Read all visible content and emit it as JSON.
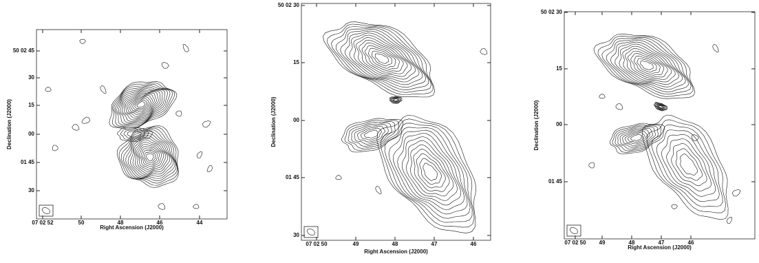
{
  "panels": [
    {
      "x_label": "Right Ascension (J2000)",
      "y_label": "Declination (J2000)",
      "xticks": [
        "07 02 52",
        "50",
        "48",
        "46",
        "44"
      ],
      "yticks": [
        "50 02 45",
        "30",
        "15",
        "00",
        "01 45",
        "30"
      ]
    },
    {
      "x_label": "Right Ascension (J2000)",
      "y_label": "Declination (J2000)",
      "xticks": [
        "07 02 50",
        "49",
        "48",
        "47",
        "46"
      ],
      "yticks": [
        "50 02 30",
        "15",
        "00",
        "01 45",
        "30"
      ]
    },
    {
      "x_label": "Right Ascension (J2000)",
      "y_label": "Declination (J2000)",
      "xticks": [
        "07 02 50",
        "49",
        "48",
        "47",
        "46"
      ],
      "yticks": [
        "50 02 30",
        "15",
        "00",
        "01 45"
      ]
    }
  ]
}
